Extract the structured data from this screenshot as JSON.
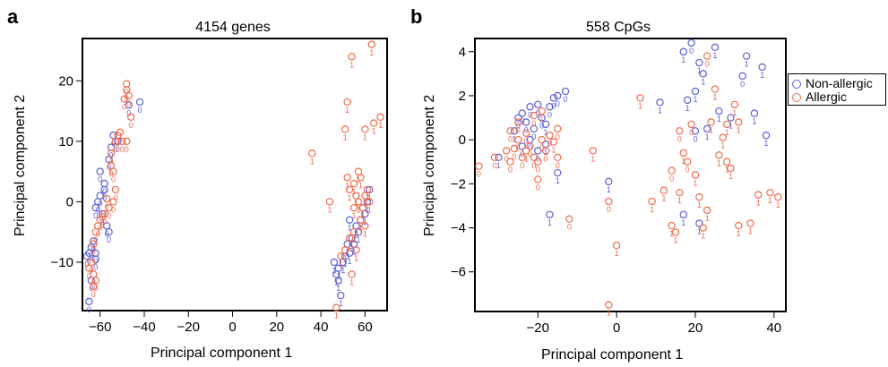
{
  "panels": [
    {
      "letter": "a",
      "title": "4154 genes",
      "xlabel": "Principal component 1",
      "ylabel": "Principal component 2"
    },
    {
      "letter": "b",
      "title": "558 CpGs",
      "xlabel": "Principal component 1",
      "ylabel": "Principal component 2"
    }
  ],
  "legend": {
    "items": [
      "Non-allergic",
      "Allergic"
    ]
  },
  "colors": {
    "non_allergic": "#5a5fd6",
    "allergic": "#f06a4a"
  },
  "chart_data": [
    {
      "type": "scatter",
      "title": "4154 genes",
      "xlabel": "Principal component 1",
      "ylabel": "Principal component 2",
      "xlim": [
        -68,
        70
      ],
      "ylim": [
        -18,
        27
      ],
      "xticks": [
        -60,
        -40,
        -20,
        0,
        20,
        40,
        60
      ],
      "yticks": [
        -10,
        0,
        10,
        20
      ],
      "point_labels": [
        "0",
        "1"
      ],
      "series": [
        {
          "name": "Non-allergic",
          "points": [
            [
              -65,
              -16.5,
              0
            ],
            [
              -64,
              -13,
              0
            ],
            [
              -66,
              -9,
              0
            ],
            [
              -65,
              -8.5,
              0
            ],
            [
              -63,
              -6.5,
              0
            ],
            [
              -64,
              -7.5,
              0
            ],
            [
              -62,
              -8.5,
              0
            ],
            [
              -62,
              -9.5,
              0
            ],
            [
              -62,
              -1,
              0
            ],
            [
              -61,
              0,
              0
            ],
            [
              -60,
              1,
              0
            ],
            [
              -58,
              2,
              0
            ],
            [
              -59,
              -2,
              0
            ],
            [
              -57,
              -4,
              0
            ],
            [
              -56,
              -5,
              0
            ],
            [
              -60,
              5,
              0
            ],
            [
              -58,
              3,
              0
            ],
            [
              -56,
              7,
              0
            ],
            [
              -55,
              9,
              0
            ],
            [
              -54,
              11,
              0
            ],
            [
              -52,
              10,
              0
            ],
            [
              -42,
              16.5,
              0
            ],
            [
              -47,
              16,
              0
            ],
            [
              46,
              -10,
              1
            ],
            [
              48,
              -11,
              1
            ],
            [
              47,
              -12,
              1
            ],
            [
              49,
              -15.5,
              1
            ],
            [
              48,
              -13,
              1
            ],
            [
              50,
              -10,
              1
            ],
            [
              51,
              -9,
              1
            ],
            [
              52,
              -7,
              1
            ],
            [
              53,
              -8.5,
              1
            ],
            [
              54,
              -6,
              1
            ],
            [
              55,
              -7,
              1
            ],
            [
              56,
              -4,
              1
            ],
            [
              57,
              -5,
              1
            ],
            [
              58,
              -3,
              1
            ],
            [
              59,
              -1,
              1
            ],
            [
              60,
              -2,
              1
            ],
            [
              61,
              0,
              1
            ],
            [
              62,
              2,
              1
            ],
            [
              53,
              -3,
              1
            ]
          ]
        },
        {
          "name": "Allergic",
          "points": [
            [
              -48,
              19.5,
              0
            ],
            [
              -48,
              18.5,
              0
            ],
            [
              -47,
              17.5,
              0
            ],
            [
              -49,
              17,
              0
            ],
            [
              -46,
              14,
              0
            ],
            [
              -51,
              11.5,
              0
            ],
            [
              -52,
              11,
              0
            ],
            [
              -53,
              10,
              0
            ],
            [
              -50,
              10,
              0
            ],
            [
              -48,
              10,
              0
            ],
            [
              -55,
              8,
              0
            ],
            [
              -54,
              5,
              0
            ],
            [
              -53,
              2,
              0
            ],
            [
              -54,
              0,
              0
            ],
            [
              -56,
              -1,
              0
            ],
            [
              -58,
              -2,
              0
            ],
            [
              -60,
              -3,
              0
            ],
            [
              -61,
              -4,
              0
            ],
            [
              -62,
              -5,
              0
            ],
            [
              -63,
              -7,
              0
            ],
            [
              -64,
              -10,
              0
            ],
            [
              -63,
              -12,
              0
            ],
            [
              -62,
              -13,
              0
            ],
            [
              -63,
              -14,
              0
            ],
            [
              -65,
              -11,
              0
            ],
            [
              -59,
              -2.5,
              0
            ],
            [
              -57,
              0.5,
              0
            ],
            [
              -55,
              6,
              0
            ],
            [
              36,
              8,
              1
            ],
            [
              44,
              0,
              1
            ],
            [
              52,
              16.5,
              1
            ],
            [
              54,
              24,
              1
            ],
            [
              51,
              12,
              1
            ],
            [
              63,
              26,
              1
            ],
            [
              64,
              13,
              1
            ],
            [
              67,
              14,
              1
            ],
            [
              60,
              12,
              1
            ],
            [
              52,
              4,
              1
            ],
            [
              53,
              2,
              1
            ],
            [
              55,
              3,
              1
            ],
            [
              57,
              5,
              1
            ],
            [
              58,
              4,
              1
            ],
            [
              56,
              1,
              1
            ],
            [
              55,
              -1,
              1
            ],
            [
              57,
              0,
              1
            ],
            [
              59,
              -1,
              1
            ],
            [
              60,
              1,
              1
            ],
            [
              61,
              2,
              1
            ],
            [
              62,
              0,
              1
            ],
            [
              58,
              -3,
              1
            ],
            [
              55,
              -5,
              1
            ],
            [
              53,
              -6,
              1
            ],
            [
              51,
              -8,
              1
            ],
            [
              49,
              -9,
              1
            ],
            [
              47,
              -17.5,
              1
            ],
            [
              56,
              -8,
              1
            ],
            [
              54,
              -12,
              1
            ],
            [
              60,
              -4,
              1
            ]
          ]
        }
      ]
    },
    {
      "type": "scatter",
      "title": "558 CpGs",
      "xlabel": "Principal component 1",
      "ylabel": "Principal component 2",
      "xlim": [
        -36,
        43
      ],
      "ylim": [
        -7.8,
        4.6
      ],
      "xticks": [
        -20,
        0,
        20,
        40
      ],
      "yticks": [
        -6,
        -4,
        -2,
        0,
        2,
        4
      ],
      "point_labels": [
        "0",
        "1"
      ],
      "series": [
        {
          "name": "Non-allergic",
          "points": [
            [
              -30,
              -0.8,
              1
            ],
            [
              -26,
              0.4,
              1
            ],
            [
              -25,
              1,
              0
            ],
            [
              -24,
              1.2,
              0
            ],
            [
              -23,
              0.8,
              0
            ],
            [
              -22,
              1.5,
              0
            ],
            [
              -21,
              0.5,
              0
            ],
            [
              -20,
              1.6,
              0
            ],
            [
              -19,
              1,
              0
            ],
            [
              -18,
              0.7,
              1
            ],
            [
              -17,
              1.5,
              0
            ],
            [
              -16,
              1.9,
              0
            ],
            [
              -15,
              2,
              0
            ],
            [
              -13,
              2.2,
              0
            ],
            [
              -22,
              0,
              0
            ],
            [
              -24,
              -0.3,
              0
            ],
            [
              -20,
              -0.5,
              0
            ],
            [
              -18,
              -0.2,
              1
            ],
            [
              -15,
              -1.5,
              1
            ],
            [
              -17,
              -3.4,
              1
            ],
            [
              -2,
              -1.9,
              1
            ],
            [
              11,
              1.7,
              1
            ],
            [
              17,
              4,
              1
            ],
            [
              19,
              4.4,
              0
            ],
            [
              21,
              3.5,
              1
            ],
            [
              25,
              4.2,
              1
            ],
            [
              22,
              3,
              1
            ],
            [
              20,
              2.2,
              1
            ],
            [
              18,
              1.8,
              1
            ],
            [
              17,
              -3.4,
              1
            ],
            [
              21,
              -3.8,
              1
            ],
            [
              29,
              1,
              1
            ],
            [
              26,
              1.3,
              1
            ],
            [
              33,
              3.8,
              1
            ],
            [
              32,
              2.9,
              0
            ],
            [
              37,
              3.3,
              1
            ],
            [
              35,
              1.2,
              1
            ],
            [
              38,
              0.2,
              1
            ],
            [
              23,
              0.5,
              1
            ],
            [
              20,
              0.4,
              0
            ]
          ]
        },
        {
          "name": "Allergic",
          "points": [
            [
              -35,
              -1.2,
              0
            ],
            [
              -31,
              -0.8,
              0
            ],
            [
              -28,
              -0.5,
              0
            ],
            [
              -27,
              -1,
              0
            ],
            [
              -26,
              -0.4,
              0
            ],
            [
              -25,
              0,
              0
            ],
            [
              -24,
              -0.8,
              0
            ],
            [
              -23,
              -0.5,
              1
            ],
            [
              -22,
              -0.3,
              0
            ],
            [
              -21,
              -0.8,
              0
            ],
            [
              -20,
              -1,
              0
            ],
            [
              -19,
              0,
              0
            ],
            [
              -18,
              -0.5,
              0
            ],
            [
              -17,
              0.2,
              0
            ],
            [
              -16,
              -0.1,
              1
            ],
            [
              -15,
              0.5,
              0
            ],
            [
              -15,
              -0.8,
              0
            ],
            [
              -27,
              0.4,
              0
            ],
            [
              -23,
              0.3,
              0
            ],
            [
              -21,
              1.1,
              0
            ],
            [
              -19,
              1.3,
              1
            ],
            [
              -25,
              0.8,
              0
            ],
            [
              -20,
              -1.8,
              0
            ],
            [
              -12,
              -3.6,
              0
            ],
            [
              -6,
              -0.5,
              1
            ],
            [
              -2,
              -2.8,
              0
            ],
            [
              0,
              -4.8,
              1
            ],
            [
              -2,
              -7.5,
              1
            ],
            [
              6,
              1.9,
              1
            ],
            [
              9,
              -2.8,
              1
            ],
            [
              14,
              -3.9,
              1
            ],
            [
              15,
              -4.2,
              1
            ],
            [
              16,
              -2.4,
              1
            ],
            [
              17,
              -0.6,
              1
            ],
            [
              16,
              0.4,
              0
            ],
            [
              18,
              -1,
              0
            ],
            [
              19,
              0.7,
              0
            ],
            [
              20,
              -1.6,
              1
            ],
            [
              21,
              -2.6,
              1
            ],
            [
              22,
              -4,
              1
            ],
            [
              23,
              -3.2,
              1
            ],
            [
              24,
              0.8,
              1
            ],
            [
              25,
              2.3,
              1
            ],
            [
              23,
              3.8,
              0
            ],
            [
              27,
              0.1,
              1
            ],
            [
              28,
              -1,
              1
            ],
            [
              29,
              -1.3,
              1
            ],
            [
              30,
              1.6,
              1
            ],
            [
              31,
              -3.9,
              1
            ],
            [
              34,
              -3.8,
              1
            ],
            [
              36,
              -2.5,
              1
            ],
            [
              39,
              -2.4,
              1
            ],
            [
              41,
              -2.6,
              1
            ],
            [
              28,
              0.7,
              1
            ],
            [
              14,
              -1.4,
              0
            ],
            [
              12,
              -2.3,
              1
            ],
            [
              26,
              -0.7,
              1
            ],
            [
              31,
              0.8,
              1
            ]
          ]
        }
      ]
    }
  ]
}
